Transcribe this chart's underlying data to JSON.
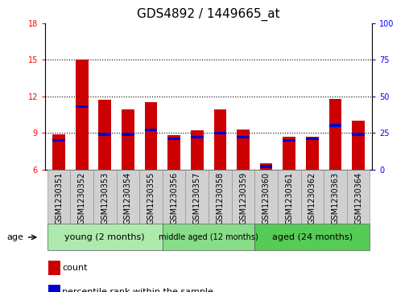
{
  "title": "GDS4892 / 1449665_at",
  "samples": [
    "GSM1230351",
    "GSM1230352",
    "GSM1230353",
    "GSM1230354",
    "GSM1230355",
    "GSM1230356",
    "GSM1230357",
    "GSM1230358",
    "GSM1230359",
    "GSM1230360",
    "GSM1230361",
    "GSM1230362",
    "GSM1230363",
    "GSM1230364"
  ],
  "count_values": [
    8.9,
    15.0,
    11.7,
    10.9,
    11.5,
    8.8,
    9.2,
    10.9,
    9.3,
    6.5,
    8.7,
    8.7,
    11.8,
    10.0
  ],
  "percentile_values": [
    20,
    43,
    24,
    24,
    27,
    21,
    22,
    25,
    22,
    2,
    20,
    21,
    30,
    24
  ],
  "y_min": 6,
  "y_max": 18,
  "y_ticks_left": [
    6,
    9,
    12,
    15,
    18
  ],
  "y_ticks_right": [
    0,
    25,
    50,
    75,
    100
  ],
  "group_boundaries": [
    0,
    5,
    9,
    14
  ],
  "group_labels": [
    "young (2 months)",
    "middle aged (12 months)",
    "aged (24 months)"
  ],
  "group_colors": [
    "#aeeaae",
    "#88dd88",
    "#55cc55"
  ],
  "bar_color": "#cc0000",
  "percentile_color": "#0000cc",
  "bar_width": 0.55,
  "age_label": "age",
  "legend_count": "count",
  "legend_percentile": "percentile rank within the sample",
  "title_fontsize": 11,
  "tick_fontsize": 7,
  "label_fontsize": 8
}
